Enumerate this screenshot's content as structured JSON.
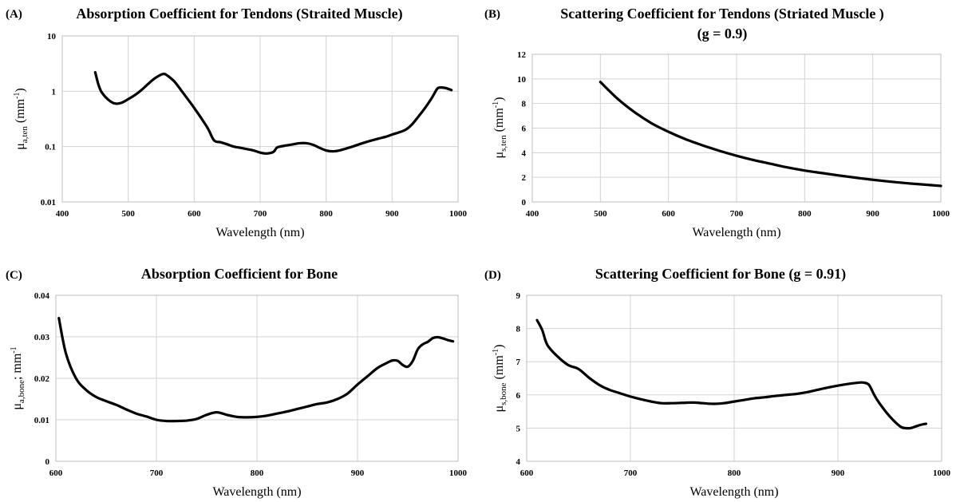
{
  "colors": {
    "line": "#000000",
    "grid": "#d3d3d3"
  },
  "chart_data": [
    {
      "panel": "(A)",
      "type": "line",
      "title": "Absorption Coefficient for Tendons (Straited Muscle)",
      "title_line2": "",
      "xlabel": "Wavelength (nm)",
      "ylabel": {
        "main": "μ",
        "sub": "a,ten",
        "rest": " (mm",
        "sup": "-1",
        "end": ")"
      },
      "y_scale": "log",
      "xlim": [
        400,
        1000
      ],
      "ylim": [
        0.01,
        10
      ],
      "x_ticks": [
        400,
        500,
        600,
        700,
        800,
        900,
        1000
      ],
      "x_tick_labels": [
        "400",
        "500",
        "600",
        "700",
        "800",
        "900",
        "1000"
      ],
      "y_ticks": [
        0.01,
        0.1,
        1,
        10
      ],
      "y_tick_labels": [
        "0.01",
        "0.1",
        "1",
        "10"
      ],
      "grid": true,
      "x": [
        450,
        455,
        460,
        470,
        480,
        490,
        500,
        510,
        520,
        530,
        540,
        550,
        555,
        560,
        570,
        580,
        600,
        620,
        630,
        640,
        650,
        660,
        670,
        680,
        690,
        700,
        710,
        720,
        725,
        730,
        740,
        750,
        760,
        770,
        780,
        790,
        800,
        810,
        820,
        830,
        840,
        850,
        860,
        870,
        880,
        890,
        900,
        910,
        920,
        930,
        940,
        950,
        960,
        965,
        970,
        980,
        990
      ],
      "y": [
        2.2,
        1.3,
        0.95,
        0.7,
        0.6,
        0.62,
        0.72,
        0.85,
        1.05,
        1.35,
        1.7,
        2.0,
        2.05,
        1.9,
        1.5,
        1.05,
        0.5,
        0.22,
        0.13,
        0.12,
        0.11,
        0.1,
        0.095,
        0.09,
        0.085,
        0.078,
        0.075,
        0.08,
        0.095,
        0.1,
        0.105,
        0.11,
        0.115,
        0.115,
        0.108,
        0.095,
        0.085,
        0.082,
        0.085,
        0.092,
        0.1,
        0.11,
        0.12,
        0.13,
        0.14,
        0.15,
        0.165,
        0.18,
        0.2,
        0.25,
        0.35,
        0.5,
        0.75,
        0.95,
        1.15,
        1.15,
        1.05
      ]
    },
    {
      "panel": "(B)",
      "type": "line",
      "title": "Scattering Coefficient for Tendons (Striated Muscle )",
      "title_line2": "(g = 0.9)",
      "xlabel": "Wavelength (nm)",
      "ylabel": {
        "main": "μ",
        "sub": "s,ten",
        "rest": " (mm",
        "sup": "-1",
        "end": ")"
      },
      "y_scale": "linear",
      "xlim": [
        400,
        1000
      ],
      "ylim": [
        0,
        12
      ],
      "x_ticks": [
        400,
        500,
        600,
        700,
        800,
        900,
        1000
      ],
      "x_tick_labels": [
        "400",
        "500",
        "600",
        "700",
        "800",
        "900",
        "1000"
      ],
      "y_ticks": [
        0,
        2,
        4,
        6,
        8,
        10,
        12
      ],
      "y_tick_labels": [
        "0",
        "2",
        "4",
        "6",
        "8",
        "10",
        "12"
      ],
      "grid": true,
      "x": [
        500,
        525,
        550,
        575,
        600,
        625,
        650,
        675,
        700,
        725,
        750,
        775,
        800,
        825,
        850,
        875,
        900,
        925,
        950,
        975,
        1000
      ],
      "y": [
        9.75,
        8.4,
        7.3,
        6.4,
        5.7,
        5.1,
        4.6,
        4.15,
        3.75,
        3.4,
        3.1,
        2.8,
        2.55,
        2.35,
        2.15,
        1.97,
        1.8,
        1.65,
        1.52,
        1.41,
        1.3
      ]
    },
    {
      "panel": "(C)",
      "type": "line",
      "title": "Absorption Coefficient for Bone",
      "title_line2": "",
      "xlabel": "Wavelength (nm)",
      "ylabel": {
        "main": "μ",
        "sub": "a,bone",
        "rest": "; mm",
        "sup": "-1",
        "end": ""
      },
      "y_scale": "linear",
      "xlim": [
        600,
        1000
      ],
      "ylim": [
        0,
        0.04
      ],
      "x_ticks": [
        600,
        700,
        800,
        900,
        1000
      ],
      "x_tick_labels": [
        "600",
        "700",
        "800",
        "900",
        "1000"
      ],
      "y_ticks": [
        0,
        0.01,
        0.02,
        0.03,
        0.04
      ],
      "y_tick_labels": [
        "0",
        "0.01",
        "0.02",
        "0.03",
        "0.04"
      ],
      "grid": true,
      "x": [
        603,
        610,
        620,
        630,
        640,
        650,
        660,
        670,
        680,
        690,
        700,
        710,
        720,
        730,
        740,
        750,
        760,
        770,
        780,
        790,
        800,
        810,
        820,
        830,
        840,
        850,
        860,
        870,
        880,
        890,
        900,
        910,
        920,
        930,
        935,
        940,
        945,
        950,
        955,
        960,
        965,
        970,
        975,
        980,
        985,
        990,
        995
      ],
      "y": [
        0.0345,
        0.026,
        0.02,
        0.0172,
        0.0155,
        0.0145,
        0.0136,
        0.0125,
        0.0115,
        0.0108,
        0.01,
        0.0097,
        0.0097,
        0.0098,
        0.0102,
        0.0112,
        0.0118,
        0.0112,
        0.0107,
        0.0106,
        0.0107,
        0.011,
        0.0115,
        0.012,
        0.0126,
        0.0132,
        0.0138,
        0.0142,
        0.015,
        0.0163,
        0.0185,
        0.0205,
        0.0225,
        0.0238,
        0.0243,
        0.0242,
        0.0232,
        0.0228,
        0.0242,
        0.027,
        0.0282,
        0.0288,
        0.0297,
        0.0299,
        0.0296,
        0.0292,
        0.0289
      ]
    },
    {
      "panel": "(D)",
      "type": "line",
      "title": "Scattering Coefficient for Bone (g = 0.91)",
      "title_line2": "",
      "xlabel": "Wavelength (nm)",
      "ylabel": {
        "main": "μ",
        "sub": "s,bone",
        "rest": " (mm",
        "sup": "-1",
        "end": ")"
      },
      "y_scale": "linear",
      "xlim": [
        600,
        1000
      ],
      "ylim": [
        4,
        9
      ],
      "x_ticks": [
        600,
        700,
        800,
        900,
        1000
      ],
      "x_tick_labels": [
        "600",
        "700",
        "800",
        "900",
        "1000"
      ],
      "y_ticks": [
        4,
        5,
        6,
        7,
        8,
        9
      ],
      "y_tick_labels": [
        "4",
        "5",
        "6",
        "7",
        "8",
        "9"
      ],
      "grid": true,
      "x": [
        610,
        615,
        620,
        630,
        640,
        650,
        660,
        670,
        680,
        690,
        700,
        710,
        720,
        730,
        740,
        750,
        760,
        770,
        780,
        790,
        800,
        810,
        820,
        830,
        840,
        850,
        860,
        870,
        880,
        890,
        900,
        910,
        920,
        925,
        930,
        935,
        940,
        950,
        960,
        965,
        970,
        975,
        980,
        985
      ],
      "y": [
        8.25,
        7.95,
        7.5,
        7.15,
        6.9,
        6.78,
        6.52,
        6.3,
        6.15,
        6.05,
        5.95,
        5.87,
        5.8,
        5.75,
        5.75,
        5.76,
        5.77,
        5.75,
        5.73,
        5.75,
        5.8,
        5.85,
        5.9,
        5.93,
        5.97,
        6.0,
        6.03,
        6.08,
        6.15,
        6.22,
        6.28,
        6.33,
        6.37,
        6.37,
        6.3,
        6.0,
        5.75,
        5.35,
        5.05,
        5.0,
        5.0,
        5.05,
        5.1,
        5.13
      ]
    }
  ]
}
